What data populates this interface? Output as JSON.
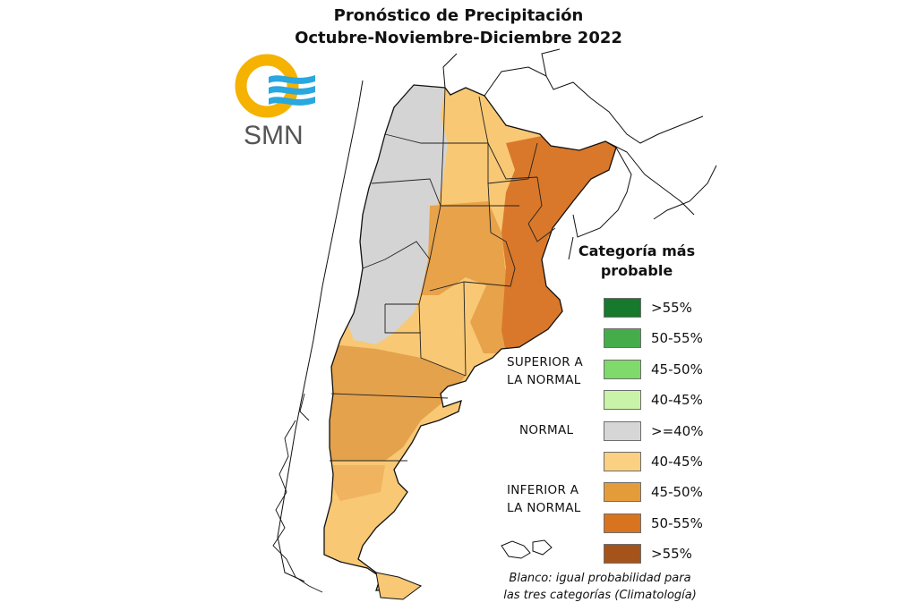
{
  "title": {
    "line1": "Pronóstico de Precipitación",
    "line2": "Octubre-Noviembre-Diciembre 2022"
  },
  "logo": {
    "text": "SMN",
    "colors": {
      "sun": "#f5b200",
      "waves": "#29a7df",
      "text": "#555555"
    }
  },
  "legend": {
    "title_line1": "Categoría más",
    "title_line2": "probable",
    "items": [
      {
        "label": ">55%",
        "color": "#16792b"
      },
      {
        "label": "50-55%",
        "color": "#45ac4c"
      },
      {
        "label": "45-50%",
        "color": "#7fd96b"
      },
      {
        "label": "40-45%",
        "color": "#c9f3a8"
      },
      {
        "label": ">=40%",
        "color": "#d6d6d6"
      },
      {
        "label": "40-45%",
        "color": "#fad082"
      },
      {
        "label": "45-50%",
        "color": "#e49c3a"
      },
      {
        "label": "50-55%",
        "color": "#d87420"
      },
      {
        "label": ">55%",
        "color": "#a5531a"
      }
    ],
    "groups": {
      "superior_line1": "SUPERIOR A",
      "superior_line2": "LA NORMAL",
      "normal": "NORMAL",
      "inferior_line1": "INFERIOR A",
      "inferior_line2": "LA NORMAL"
    },
    "note_line1": "Blanco: igual probabilidad para",
    "note_line2": "las tres categorías (Climatología)"
  },
  "map": {
    "region_categories": {
      "northwest": ">=40%",
      "northeast": "40-45%",
      "litoral": "50-55%",
      "pampa": "45-50%",
      "patagonia_north": "45-50%",
      "patagonia_south": "40-45%"
    }
  }
}
